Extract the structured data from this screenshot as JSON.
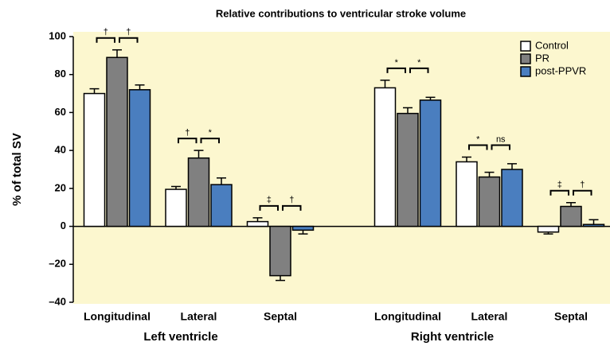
{
  "chart_data": {
    "type": "bar",
    "title": "Relative contributions to ventricular stroke volume",
    "y_label": "% of total SV",
    "categories": [
      "Longitudinal",
      "Lateral",
      "Septal",
      "Longitudinal",
      "Lateral",
      "Septal"
    ],
    "groups": [
      "Left ventricle",
      "Right ventricle"
    ],
    "series": [
      {
        "name": "Control",
        "color": "#ffffff",
        "values": [
          70,
          19.5,
          2.5,
          73,
          34,
          -3
        ],
        "errors": [
          2.5,
          1.5,
          2,
          4,
          2.5,
          1
        ]
      },
      {
        "name": "PR",
        "color": "#808080",
        "values": [
          89,
          36,
          -26,
          59.5,
          26,
          10.5
        ],
        "errors": [
          4,
          4,
          2.5,
          3,
          2.5,
          2
        ]
      },
      {
        "name": "post-PPVR",
        "color": "#4a7ebf",
        "values": [
          72,
          22,
          -2,
          66.5,
          30,
          1
        ],
        "errors": [
          2.5,
          3.5,
          2,
          1.5,
          3,
          2.5
        ]
      }
    ],
    "significance": [
      [
        "†",
        "†"
      ],
      [
        "†",
        "*"
      ],
      [
        "‡",
        "†"
      ],
      [
        "*",
        "*"
      ],
      [
        "*",
        "ns"
      ],
      [
        "‡",
        "†"
      ]
    ],
    "ylim": [
      -40,
      100
    ],
    "yticks": [
      {
        "value": -40,
        "label": "–40"
      },
      {
        "value": -20,
        "label": "–20"
      },
      0,
      20,
      40,
      60,
      80,
      100
    ],
    "legend": "top-right"
  }
}
